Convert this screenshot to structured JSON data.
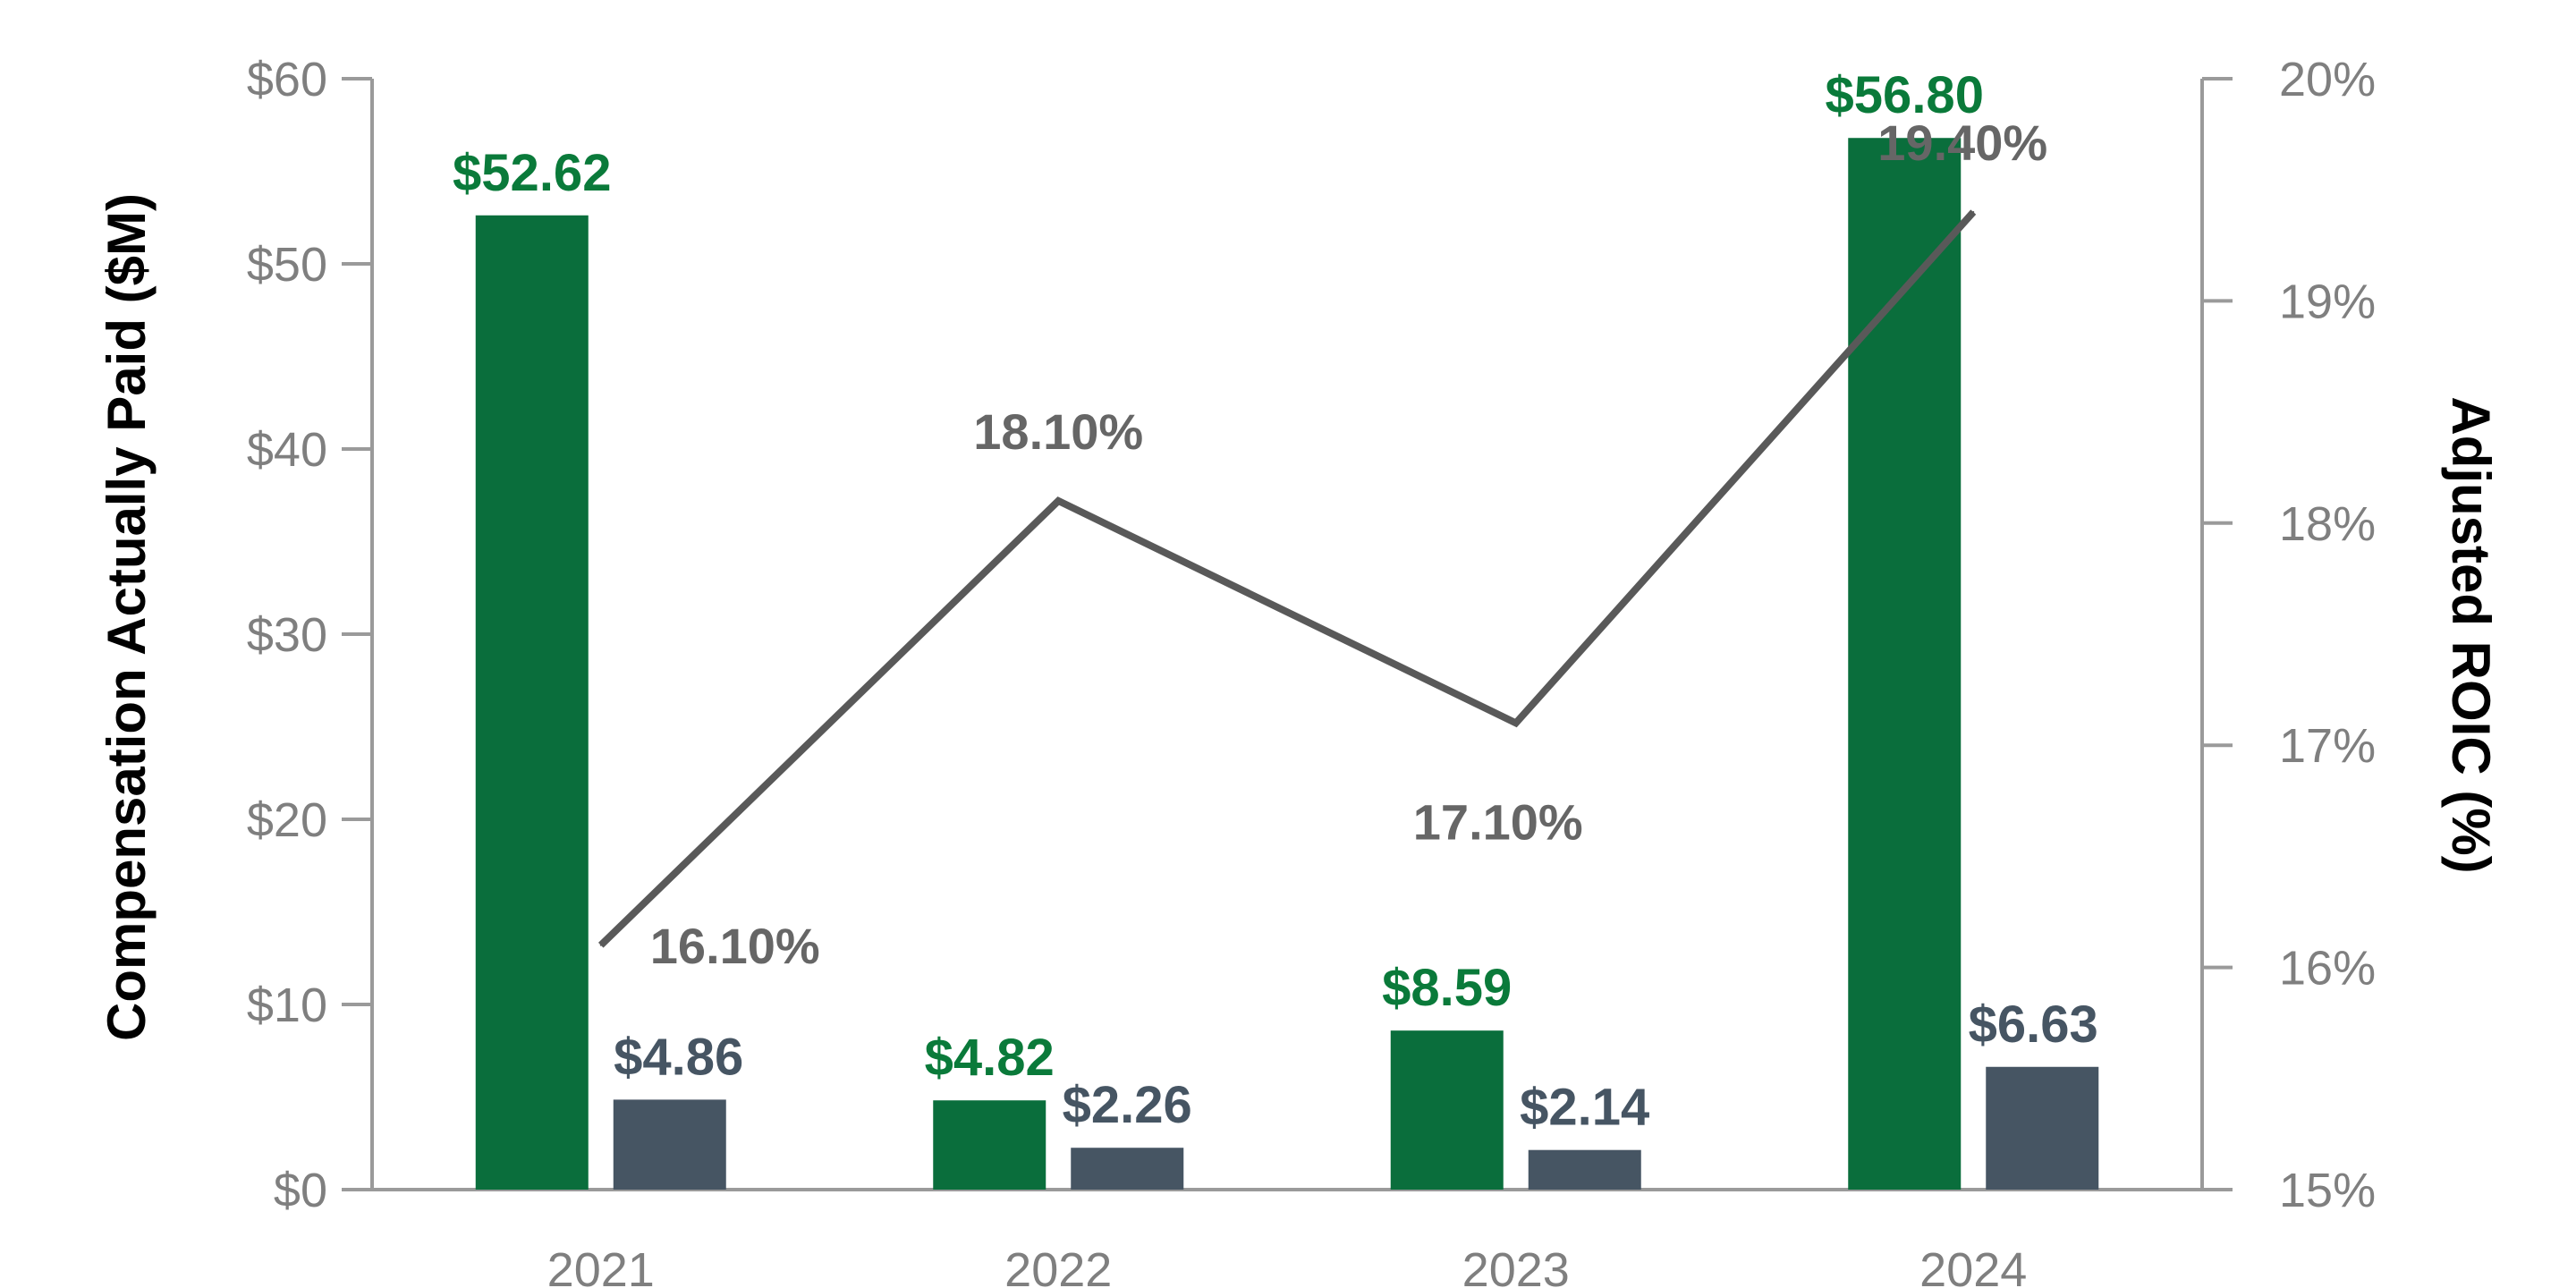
{
  "chart_data": {
    "type": "bar+line",
    "categories": [
      "2021",
      "2022",
      "2023",
      "2024"
    ],
    "series": [
      {
        "name": "Compensation Actually Paid (green)",
        "axis": "left",
        "color": "#0a6e3c",
        "label_color": "#0a7a3a",
        "values": [
          52.62,
          4.82,
          8.59,
          56.8
        ],
        "labels": [
          "$52.62",
          "$4.82",
          "$8.59",
          "$56.80"
        ]
      },
      {
        "name": "Compensation Actually Paid (gray)",
        "axis": "left",
        "color": "#465563",
        "label_color": "#465563",
        "values": [
          4.86,
          2.26,
          2.14,
          6.63
        ],
        "labels": [
          "$4.86",
          "$2.26",
          "$2.14",
          "$6.63"
        ]
      },
      {
        "name": "Adjusted ROIC",
        "type": "line",
        "axis": "right",
        "color": "#595959",
        "values": [
          16.1,
          18.1,
          17.1,
          19.4
        ],
        "labels": [
          "16.10%",
          "18.10%",
          "17.10%",
          "19.40%"
        ]
      }
    ],
    "ylabel": "Compensation Actually Paid ($M)",
    "y2label": "Adjusted ROIC (%)",
    "ylim": [
      0,
      60
    ],
    "y2lim": [
      15,
      20
    ],
    "yticks": [
      "$0",
      "$10",
      "$20",
      "$30",
      "$40",
      "$50",
      "$60"
    ],
    "y2ticks": [
      "15%",
      "16%",
      "17%",
      "18%",
      "19%",
      "20%"
    ],
    "grid": false,
    "axis_color": "#9a9a9a"
  }
}
